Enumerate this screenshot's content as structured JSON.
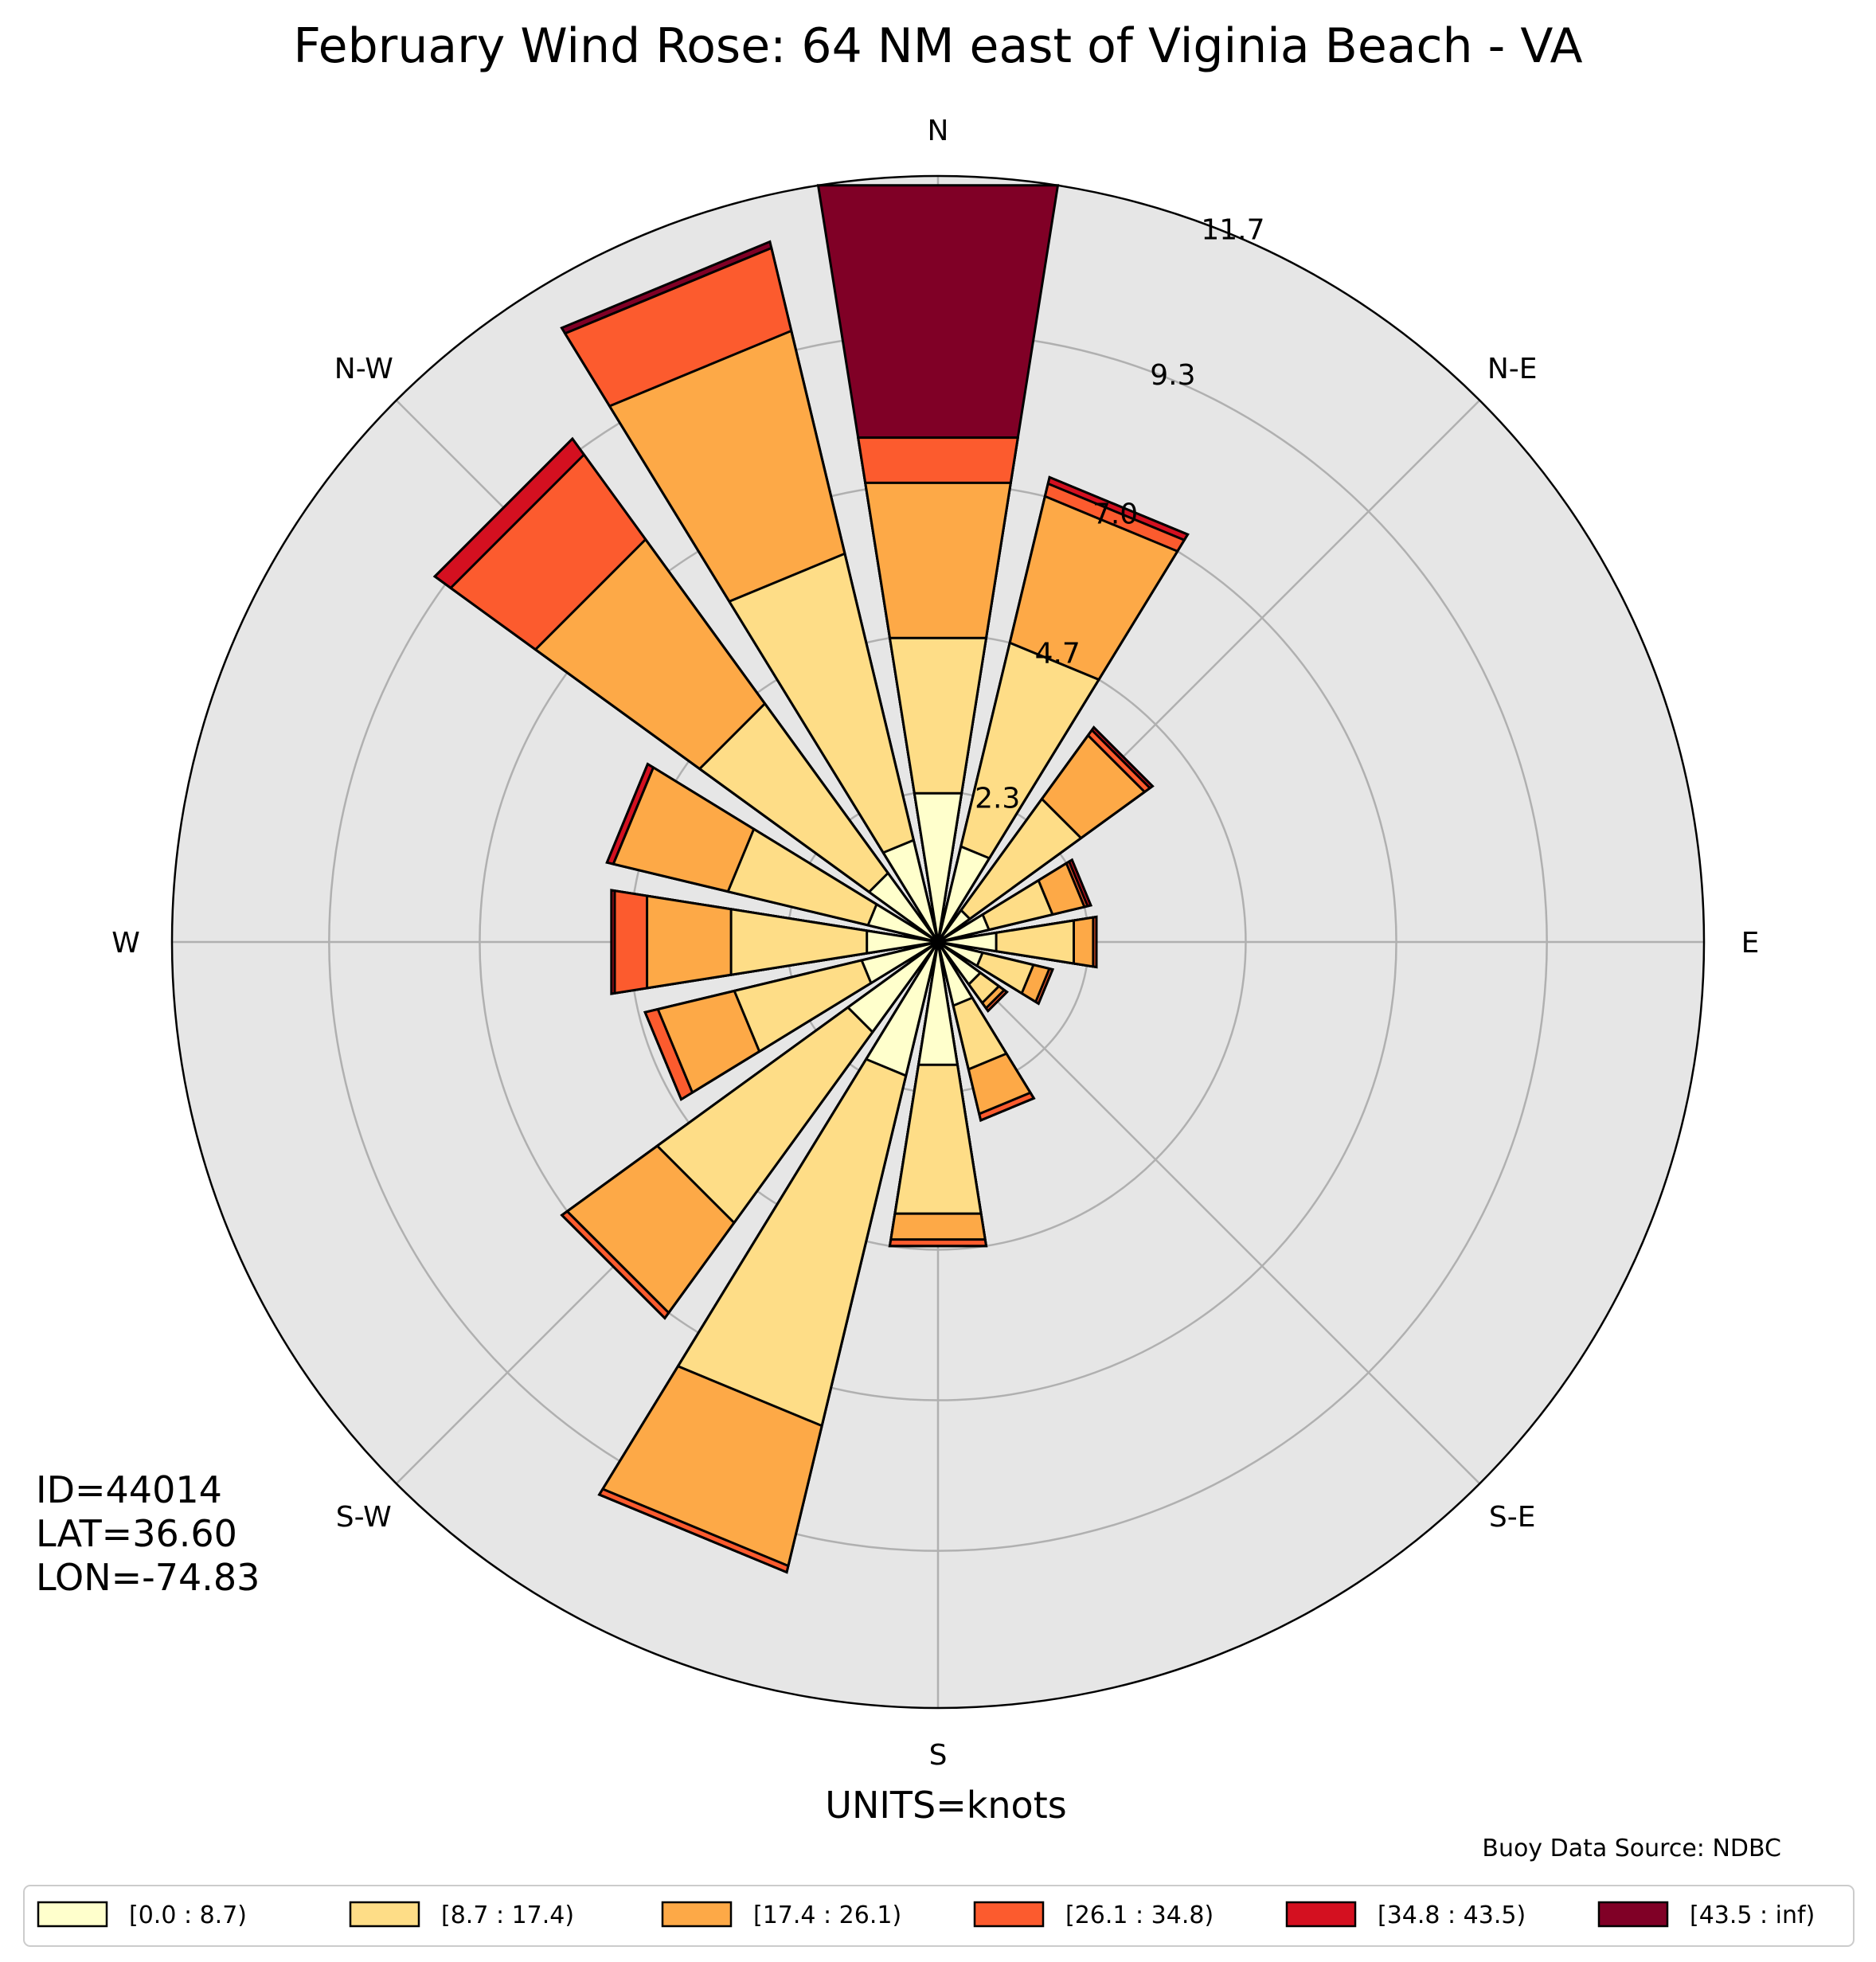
{
  "chart_data": {
    "type": "windrose",
    "title": "February Wind Rose: 64 NM east of Viginia Beach - VA",
    "directions": [
      "N",
      "NNE",
      "NE",
      "ENE",
      "E",
      "ESE",
      "SE",
      "SSE",
      "S",
      "SSW",
      "SW",
      "WSW",
      "W",
      "WNW",
      "NW",
      "NNW"
    ],
    "direction_labels": [
      "N",
      "N-E",
      "E",
      "S-E",
      "S",
      "S-W",
      "W",
      "N-W"
    ],
    "rmax": 11.7,
    "ring_values": [
      2.3,
      4.7,
      7.0,
      9.3
    ],
    "ring_labels": [
      "2.3",
      "4.7",
      "7.0",
      "9.3",
      "11.7"
    ],
    "bins": [
      "[0.0 : 8.7)",
      "[8.7 : 17.4)",
      "[17.4 : 26.1)",
      "[26.1 : 34.8)",
      "[34.8 : 43.5)",
      "[43.5 : inf)"
    ],
    "colors": [
      "#ffffcc",
      "#fedd87",
      "#fda947",
      "#fc5b2e",
      "#d41020",
      "#800026"
    ],
    "stacks": [
      [
        2.3,
        4.7,
        7.1,
        7.8,
        7.8,
        11.7
      ],
      [
        1.5,
        4.7,
        7.0,
        7.2,
        7.3,
        7.3
      ],
      [
        0.6,
        2.7,
        3.9,
        4.0,
        4.05,
        4.05
      ],
      [
        0.8,
        1.8,
        2.3,
        2.35,
        2.4,
        2.4
      ],
      [
        0.9,
        2.1,
        2.4,
        2.45,
        2.45,
        2.45
      ],
      [
        0.7,
        1.5,
        1.75,
        1.8,
        1.8,
        1.8
      ],
      [
        0.8,
        1.15,
        1.25,
        1.3,
        1.3,
        1.3
      ],
      [
        1.0,
        2.0,
        2.7,
        2.8,
        2.8,
        2.8
      ],
      [
        1.9,
        4.2,
        4.6,
        4.7,
        4.7,
        4.7
      ],
      [
        2.1,
        7.6,
        9.8,
        9.9,
        9.9,
        9.9
      ],
      [
        1.7,
        5.3,
        7.0,
        7.1,
        7.1,
        7.1
      ],
      [
        1.2,
        3.2,
        4.4,
        4.6,
        4.6,
        4.6
      ],
      [
        1.1,
        3.2,
        4.5,
        5.0,
        5.05,
        5.05
      ],
      [
        1.1,
        3.3,
        5.1,
        5.1,
        5.2,
        5.2
      ],
      [
        1.3,
        4.5,
        7.6,
        9.2,
        9.5,
        9.5
      ],
      [
        1.6,
        6.1,
        9.6,
        10.9,
        10.9,
        11.0
      ]
    ]
  },
  "info": {
    "id": "ID=44014",
    "lat": "LAT=36.60",
    "lon": "LON=-74.83"
  },
  "units": "UNITS=knots",
  "source": "Buoy Data Source: NDBC"
}
